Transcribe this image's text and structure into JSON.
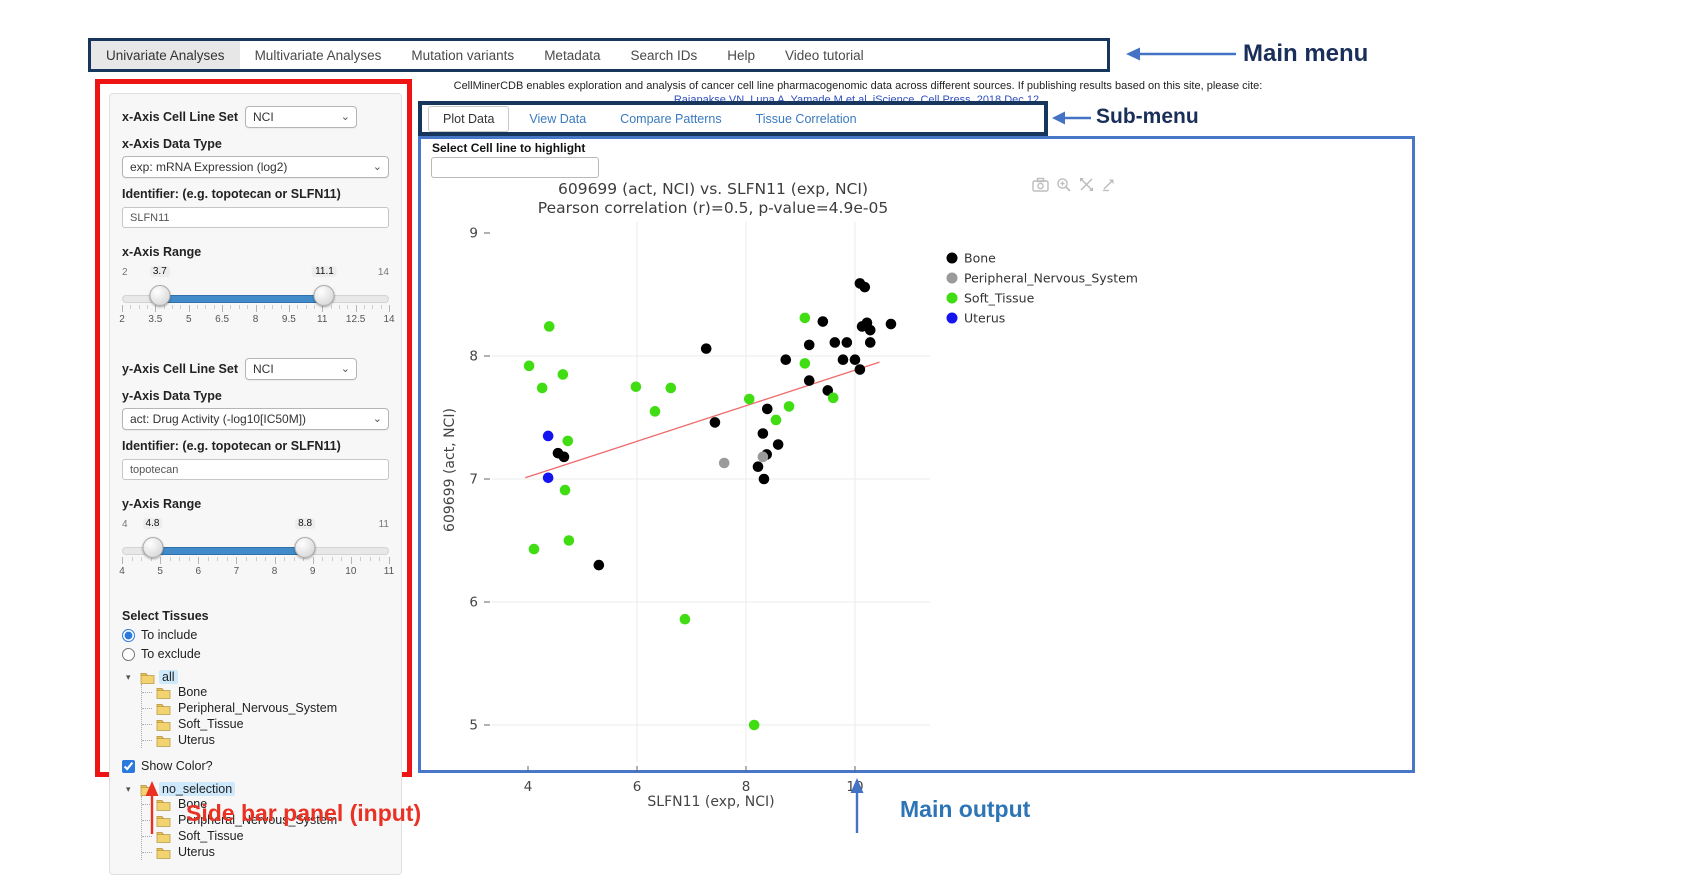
{
  "annotations": {
    "main_menu": "Main menu",
    "sub_menu": "Sub-menu",
    "sidebar": "Side bar panel (input)",
    "main_output": "Main output"
  },
  "main_menu": {
    "items": [
      {
        "label": "Univariate Analyses",
        "active": true
      },
      {
        "label": "Multivariate Analyses",
        "active": false
      },
      {
        "label": "Mutation variants",
        "active": false
      },
      {
        "label": "Metadata",
        "active": false
      },
      {
        "label": "Search IDs",
        "active": false
      },
      {
        "label": "Help",
        "active": false
      },
      {
        "label": "Video tutorial",
        "active": false
      }
    ]
  },
  "citation": {
    "line1": "CellMinerCDB enables exploration and analysis of cancer cell line pharmacogenomic data across different sources. If publishing results based on this site, please cite:",
    "link": "Rajapakse VN, Luna A, Yamade M et al. iScience, Cell Press, 2018 Dec 12."
  },
  "sub_menu": {
    "tabs": [
      {
        "label": "Plot Data",
        "active": true
      },
      {
        "label": "View Data",
        "active": false
      },
      {
        "label": "Compare Patterns",
        "active": false
      },
      {
        "label": "Tissue Correlation",
        "active": false
      }
    ]
  },
  "highlight": {
    "label": "Select Cell line to highlight",
    "value": ""
  },
  "sidebar": {
    "x_axis": {
      "cell_line_set_label": "x-Axis Cell Line Set",
      "cell_line_set_value": "NCI",
      "data_type_label": "x-Axis Data Type",
      "data_type_value": "exp: mRNA Expression (log2)",
      "identifier_label": "Identifier: (e.g. topotecan or SLFN11)",
      "identifier_value": "SLFN11",
      "range_label": "x-Axis Range",
      "range": {
        "min": 2,
        "max": 14,
        "from": 3.7,
        "to": 11.1,
        "ticks": [
          2,
          3.5,
          5,
          6.5,
          8,
          9.5,
          11,
          12.5,
          14
        ]
      }
    },
    "y_axis": {
      "cell_line_set_label": "y-Axis Cell Line Set",
      "cell_line_set_value": "NCI",
      "data_type_label": "y-Axis Data Type",
      "data_type_value": "act: Drug Activity (-log10[IC50M])",
      "identifier_label": "Identifier: (e.g. topotecan or SLFN11)",
      "identifier_value": "topotecan",
      "range_label": "y-Axis Range",
      "range": {
        "min": 4,
        "max": 11,
        "from": 4.8,
        "to": 8.8,
        "ticks": [
          4,
          5,
          6,
          7,
          8,
          9,
          10,
          11
        ]
      }
    },
    "tissues": {
      "label": "Select Tissues",
      "include_label": "To include",
      "exclude_label": "To exclude",
      "include_selected": true,
      "show_color_label": "Show Color?",
      "show_color_checked": true,
      "tissue_tree": {
        "root": "all",
        "root_selected": true,
        "children": [
          "Bone",
          "Peripheral_Nervous_System",
          "Soft_Tissue",
          "Uterus"
        ]
      },
      "color_tree": {
        "root": "no_selection",
        "root_selected": true,
        "children": [
          "Bone",
          "Peripheral_Nervous_System",
          "Soft_Tissue",
          "Uterus"
        ]
      }
    }
  },
  "chart_data": {
    "type": "scatter",
    "title": "609699 (act, NCI) vs. SLFN11 (exp, NCI)",
    "subtitle": "Pearson correlation (r)=0.5, p-value=4.9e-05",
    "xlabel": "SLFN11 (exp, NCI)",
    "ylabel": "609699 (act, NCI)",
    "xlim": [
      3.2,
      11.2
    ],
    "ylim": [
      4.6,
      9.1
    ],
    "x_ticks": [
      4,
      6,
      8,
      10
    ],
    "y_ticks": [
      5,
      6,
      7,
      8,
      9
    ],
    "grid": true,
    "legend_position": "right",
    "series": [
      {
        "name": "Bone",
        "color": "#000000",
        "points": [
          [
            4.55,
            7.21
          ],
          [
            4.66,
            7.18
          ],
          [
            5.3,
            6.3
          ],
          [
            7.27,
            8.06
          ],
          [
            7.43,
            7.46
          ],
          [
            8.22,
            7.1
          ],
          [
            8.31,
            7.37
          ],
          [
            8.33,
            7.0
          ],
          [
            8.38,
            7.2
          ],
          [
            8.39,
            7.57
          ],
          [
            8.59,
            7.28
          ],
          [
            8.73,
            7.97
          ],
          [
            9.16,
            8.09
          ],
          [
            9.16,
            7.8
          ],
          [
            9.41,
            8.28
          ],
          [
            9.5,
            7.72
          ],
          [
            9.63,
            8.11
          ],
          [
            9.78,
            7.97
          ],
          [
            9.85,
            8.11
          ],
          [
            10.0,
            7.97
          ],
          [
            10.09,
            8.59
          ],
          [
            10.18,
            8.56
          ],
          [
            10.09,
            7.89
          ],
          [
            10.13,
            8.24
          ],
          [
            10.22,
            8.27
          ],
          [
            10.28,
            8.21
          ],
          [
            10.28,
            8.11
          ],
          [
            10.66,
            8.26
          ]
        ]
      },
      {
        "name": "Peripheral_Nervous_System",
        "color": "#9a9a9a",
        "points": [
          [
            7.6,
            7.13
          ],
          [
            8.31,
            7.18
          ]
        ]
      },
      {
        "name": "Soft_Tissue",
        "color": "#3fdd12",
        "points": [
          [
            4.02,
            7.92
          ],
          [
            4.11,
            6.43
          ],
          [
            4.26,
            7.74
          ],
          [
            4.39,
            8.24
          ],
          [
            4.64,
            7.85
          ],
          [
            4.68,
            6.91
          ],
          [
            4.73,
            7.31
          ],
          [
            4.75,
            6.5
          ],
          [
            5.98,
            7.75
          ],
          [
            6.33,
            7.55
          ],
          [
            6.62,
            7.74
          ],
          [
            6.88,
            5.86
          ],
          [
            8.06,
            7.65
          ],
          [
            8.15,
            5.0
          ],
          [
            8.55,
            7.48
          ],
          [
            8.79,
            7.59
          ],
          [
            9.08,
            7.94
          ],
          [
            9.08,
            8.31
          ],
          [
            9.6,
            7.66
          ]
        ]
      },
      {
        "name": "Uterus",
        "color": "#1414f0",
        "points": [
          [
            4.37,
            7.35
          ],
          [
            4.37,
            7.01
          ]
        ]
      }
    ],
    "trend_line": {
      "color": "#ee6a6a",
      "x1": 3.95,
      "y1": 7.01,
      "x2": 10.45,
      "y2": 7.95
    }
  },
  "colors": {
    "menu_border_navy": "#17365d",
    "output_border_blue": "#4877c8",
    "annotation_arrow_blue": "#4472c4",
    "sidebar_border_red": "#ee1414",
    "slider_blue": "#428bca",
    "grid_gray": "#ebebeb"
  }
}
